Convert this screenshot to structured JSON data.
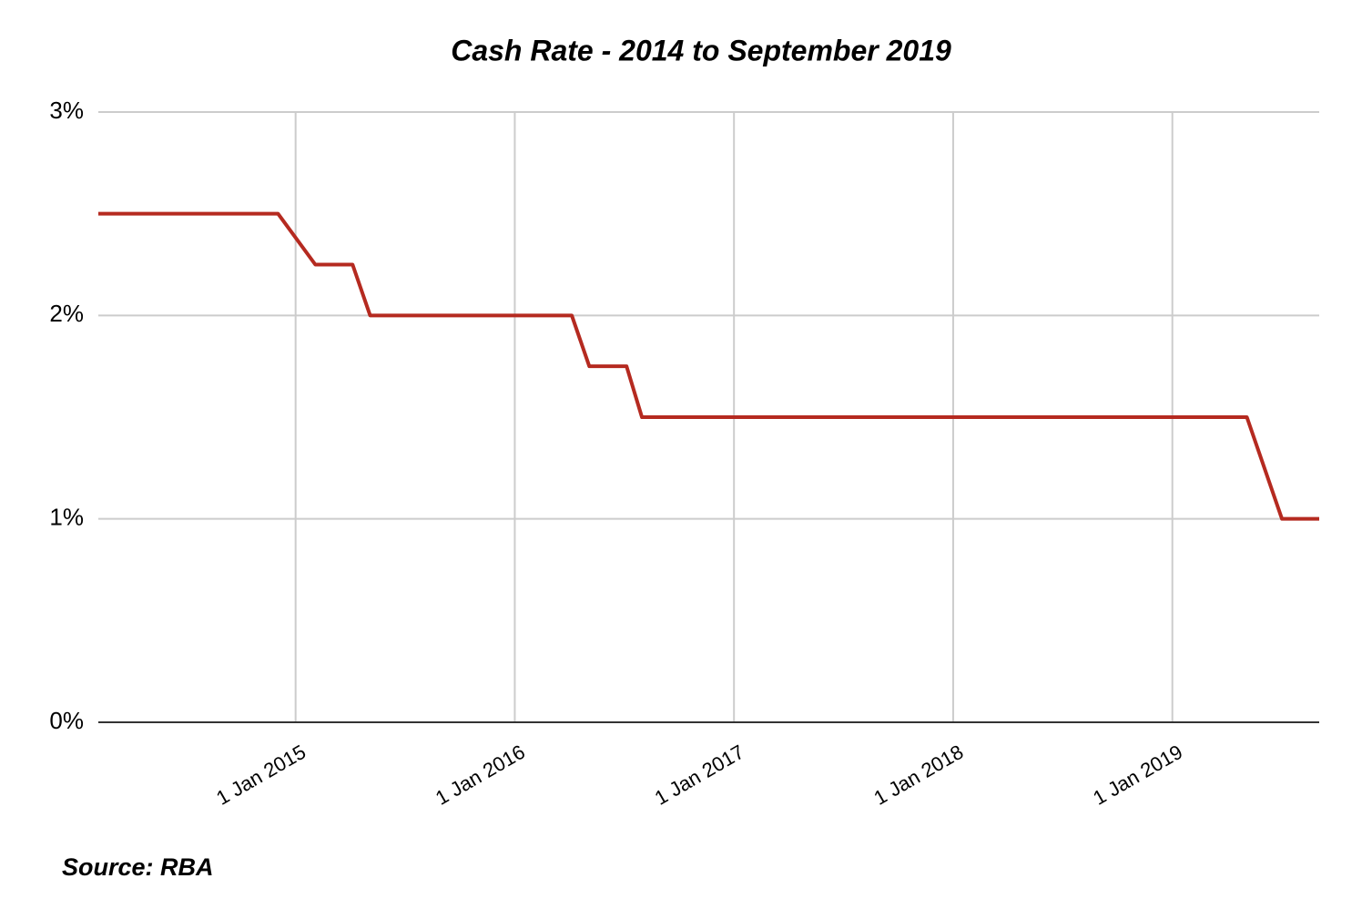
{
  "chart_data": {
    "type": "line",
    "title": "Cash Rate - 2014 to September 2019",
    "source": "Source: RBA",
    "x": [
      2014.1,
      2014.92,
      2015.09,
      2015.26,
      2015.34,
      2016.26,
      2016.34,
      2016.51,
      2016.58,
      2019.34,
      2019.5,
      2019.67
    ],
    "series": [
      {
        "color": "#b52a20",
        "values": [
          2.5,
          2.5,
          2.25,
          2.25,
          2.0,
          2.0,
          1.75,
          1.75,
          1.5,
          1.5,
          1.0,
          1.0
        ]
      }
    ],
    "xlim": [
      2014.1,
      2019.67
    ],
    "xticks": [
      {
        "value": 2015,
        "label": "1 Jan 2015"
      },
      {
        "value": 2016,
        "label": "1 Jan 2016"
      },
      {
        "value": 2017,
        "label": "1 Jan 2017"
      },
      {
        "value": 2018,
        "label": "1 Jan 2018"
      },
      {
        "value": 2019,
        "label": "1 Jan 2019"
      }
    ],
    "ylim": [
      0,
      3
    ],
    "yticks": [
      {
        "value": 0,
        "label": "0%"
      },
      {
        "value": 1,
        "label": "1%"
      },
      {
        "value": 2,
        "label": "2%"
      },
      {
        "value": 3,
        "label": "3%"
      }
    ],
    "grid": true
  }
}
